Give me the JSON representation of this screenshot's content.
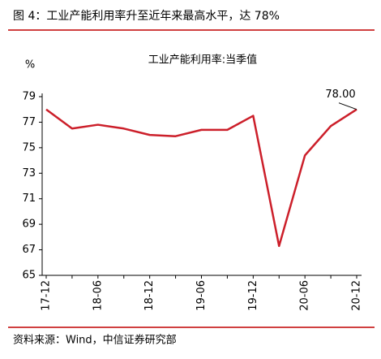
{
  "header": "图 4：工业产能利用率升至近年来最高水平，达 78%",
  "source": "资料来源：Wind，中信证券研究部",
  "chart_data": {
    "type": "line",
    "title": "工业产能利用率:当季值",
    "y_label": "%",
    "categories": [
      "17-12",
      null,
      "18-06",
      null,
      "18-12",
      null,
      "19-06",
      null,
      "19-12",
      null,
      "20-06",
      null,
      "20-12"
    ],
    "series": [
      {
        "name": "工业产能利用率:当季值",
        "color": "#cc1f2a",
        "values": [
          78.0,
          76.5,
          76.8,
          76.5,
          76.0,
          75.9,
          76.4,
          76.4,
          77.5,
          67.3,
          74.4,
          76.7,
          78.0
        ],
        "value_labels": [
          null,
          null,
          null,
          null,
          null,
          null,
          null,
          null,
          null,
          null,
          null,
          null,
          "78.00"
        ]
      }
    ],
    "ylim": [
      65,
      79
    ],
    "yticks": [
      65,
      67,
      69,
      71,
      73,
      75,
      77,
      79
    ]
  }
}
